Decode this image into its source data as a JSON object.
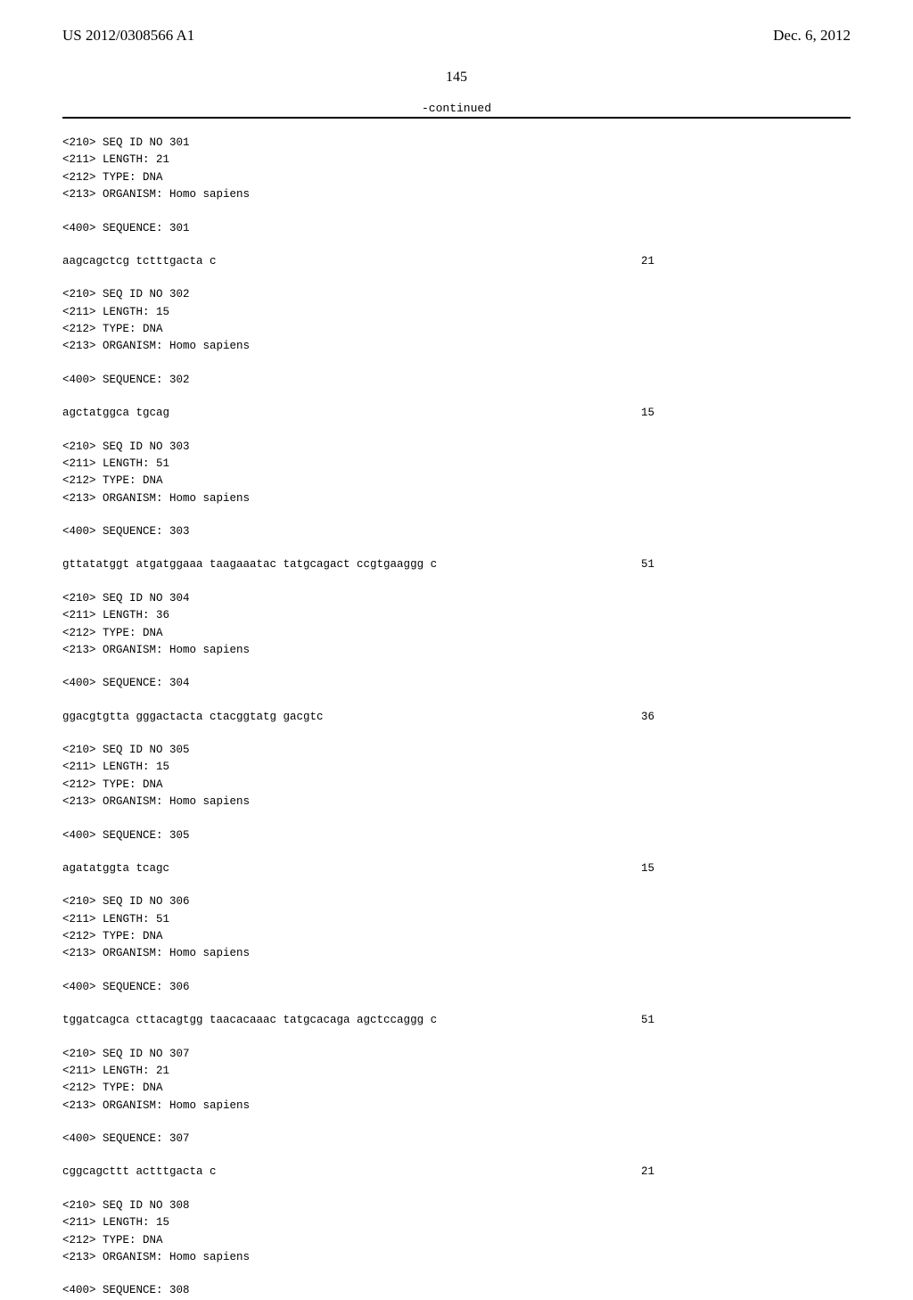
{
  "header": {
    "pub_number": "US 2012/0308566 A1",
    "pub_date": "Dec. 6, 2012"
  },
  "page_number": "145",
  "continued_label": "-continued",
  "entries": [
    {
      "seq_id": "<210> SEQ ID NO 301",
      "length": "<211> LENGTH: 21",
      "type": "<212> TYPE: DNA",
      "organism": "<213> ORGANISM: Homo sapiens",
      "seq_label": "<400> SEQUENCE: 301",
      "sequence": "aagcagctcg tctttgacta c",
      "seq_len": "21"
    },
    {
      "seq_id": "<210> SEQ ID NO 302",
      "length": "<211> LENGTH: 15",
      "type": "<212> TYPE: DNA",
      "organism": "<213> ORGANISM: Homo sapiens",
      "seq_label": "<400> SEQUENCE: 302",
      "sequence": "agctatggca tgcag",
      "seq_len": "15"
    },
    {
      "seq_id": "<210> SEQ ID NO 303",
      "length": "<211> LENGTH: 51",
      "type": "<212> TYPE: DNA",
      "organism": "<213> ORGANISM: Homo sapiens",
      "seq_label": "<400> SEQUENCE: 303",
      "sequence": "gttatatggt atgatggaaa taagaaatac tatgcagact ccgtgaaggg c",
      "seq_len": "51"
    },
    {
      "seq_id": "<210> SEQ ID NO 304",
      "length": "<211> LENGTH: 36",
      "type": "<212> TYPE: DNA",
      "organism": "<213> ORGANISM: Homo sapiens",
      "seq_label": "<400> SEQUENCE: 304",
      "sequence": "ggacgtgtta gggactacta ctacggtatg gacgtc",
      "seq_len": "36"
    },
    {
      "seq_id": "<210> SEQ ID NO 305",
      "length": "<211> LENGTH: 15",
      "type": "<212> TYPE: DNA",
      "organism": "<213> ORGANISM: Homo sapiens",
      "seq_label": "<400> SEQUENCE: 305",
      "sequence": "agatatggta tcagc",
      "seq_len": "15"
    },
    {
      "seq_id": "<210> SEQ ID NO 306",
      "length": "<211> LENGTH: 51",
      "type": "<212> TYPE: DNA",
      "organism": "<213> ORGANISM: Homo sapiens",
      "seq_label": "<400> SEQUENCE: 306",
      "sequence": "tggatcagca cttacagtgg taacacaaac tatgcacaga agctccaggg c",
      "seq_len": "51"
    },
    {
      "seq_id": "<210> SEQ ID NO 307",
      "length": "<211> LENGTH: 21",
      "type": "<212> TYPE: DNA",
      "organism": "<213> ORGANISM: Homo sapiens",
      "seq_label": "<400> SEQUENCE: 307",
      "sequence": "cggcagcttt actttgacta c",
      "seq_len": "21"
    },
    {
      "seq_id": "<210> SEQ ID NO 308",
      "length": "<211> LENGTH: 15",
      "type": "<212> TYPE: DNA",
      "organism": "<213> ORGANISM: Homo sapiens",
      "seq_label": "<400> SEQUENCE: 308",
      "sequence": "",
      "seq_len": ""
    }
  ]
}
